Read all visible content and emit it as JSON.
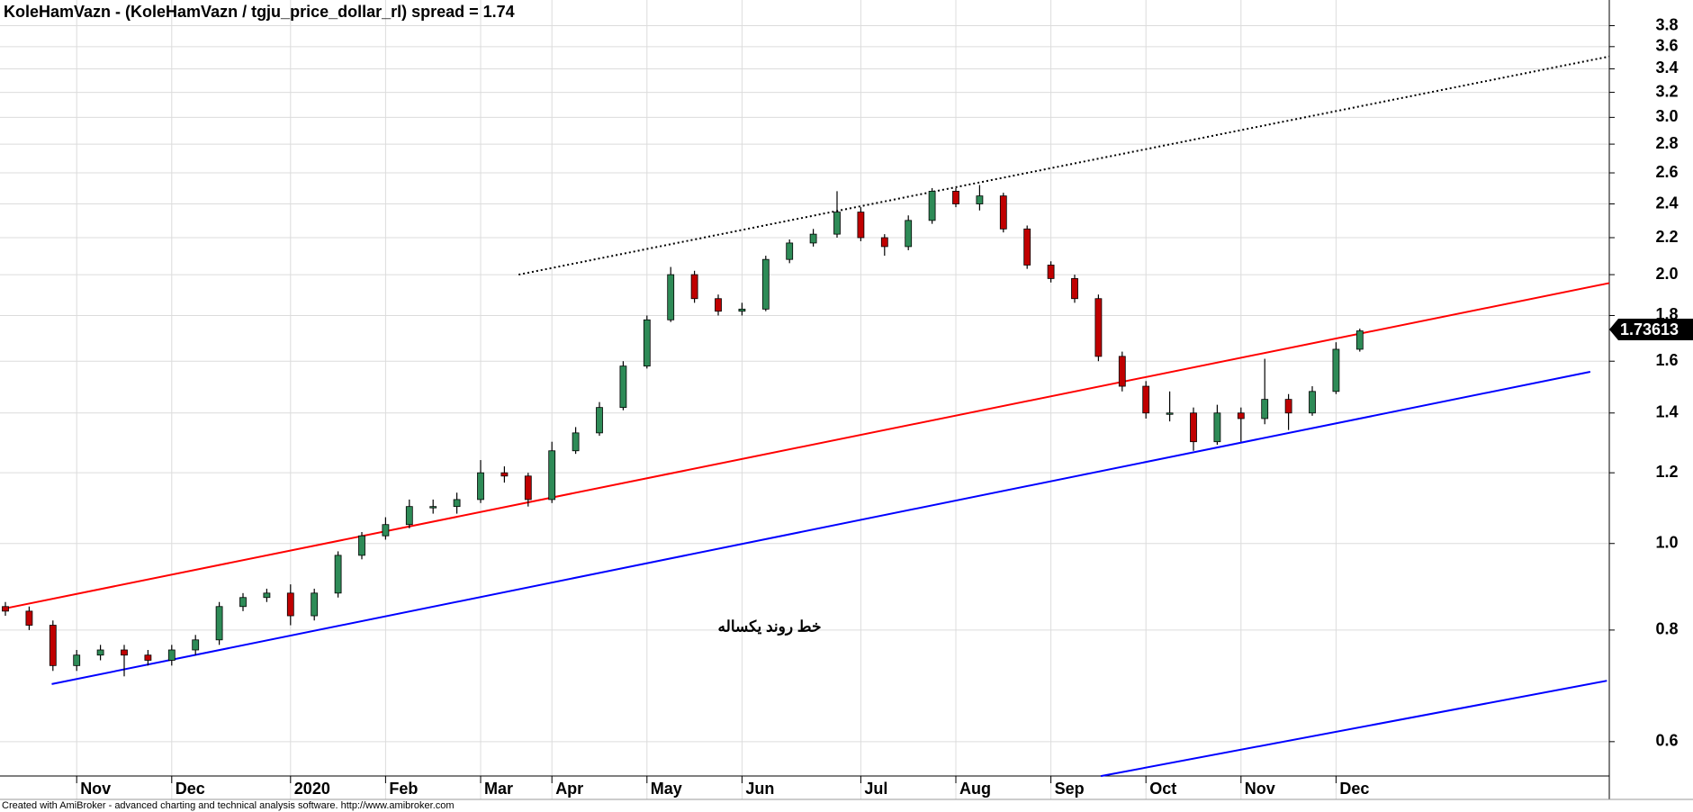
{
  "chart_data": {
    "type": "candlestick",
    "title": "KoleHamVazn - (KoleHamVazn / tgju_price_dollar_rl) spread = 1.74",
    "footer": "Created with AmiBroker - advanced charting and technical analysis software. http://www.amibroker.com",
    "annotation": "خط روند یکساله",
    "log_scale": true,
    "grid": true,
    "up_color": "#2e8b57",
    "down_color": "#c00000",
    "categories": [
      null,
      null,
      null,
      "Nov",
      null,
      null,
      null,
      "Dec",
      null,
      null,
      null,
      null,
      "2020",
      null,
      null,
      null,
      "Feb",
      null,
      null,
      null,
      "Mar",
      null,
      null,
      "Apr",
      null,
      null,
      null,
      "May",
      null,
      null,
      null,
      "Jun",
      null,
      null,
      null,
      null,
      "Jul",
      null,
      null,
      null,
      "Aug",
      null,
      null,
      null,
      "Sep",
      null,
      null,
      null,
      "Oct",
      null,
      null,
      null,
      "Nov",
      null,
      null,
      null,
      "Dec",
      null
    ],
    "open": [
      0.85,
      0.84,
      0.81,
      0.73,
      0.75,
      0.76,
      0.75,
      0.74,
      0.76,
      0.78,
      0.85,
      0.87,
      0.88,
      0.83,
      0.88,
      0.97,
      1.02,
      1.05,
      1.1,
      1.1,
      1.12,
      1.2,
      1.19,
      1.12,
      1.27,
      1.33,
      1.42,
      1.58,
      1.78,
      2.0,
      1.88,
      1.82,
      1.83,
      2.08,
      2.17,
      2.22,
      2.35,
      2.2,
      2.15,
      2.3,
      2.48,
      2.4,
      2.45,
      2.25,
      2.05,
      1.98,
      1.88,
      1.62,
      1.5,
      1.4,
      1.4,
      1.3,
      1.4,
      1.38,
      1.45,
      1.4,
      1.48,
      1.65
    ],
    "high": [
      0.86,
      0.85,
      0.82,
      0.76,
      0.77,
      0.77,
      0.76,
      0.77,
      0.79,
      0.86,
      0.88,
      0.89,
      0.9,
      0.89,
      0.98,
      1.03,
      1.07,
      1.12,
      1.12,
      1.14,
      1.24,
      1.22,
      1.2,
      1.3,
      1.35,
      1.44,
      1.6,
      1.8,
      2.04,
      2.02,
      1.9,
      1.86,
      2.1,
      2.19,
      2.25,
      2.48,
      2.38,
      2.22,
      2.33,
      2.5,
      2.5,
      2.52,
      2.47,
      2.27,
      2.07,
      2.0,
      1.9,
      1.64,
      1.52,
      1.48,
      1.42,
      1.43,
      1.42,
      1.61,
      1.47,
      1.5,
      1.68,
      1.74
    ],
    "low": [
      0.83,
      0.8,
      0.72,
      0.72,
      0.74,
      0.71,
      0.73,
      0.73,
      0.75,
      0.77,
      0.84,
      0.86,
      0.81,
      0.82,
      0.87,
      0.96,
      1.01,
      1.04,
      1.08,
      1.08,
      1.11,
      1.17,
      1.1,
      1.11,
      1.26,
      1.32,
      1.41,
      1.57,
      1.77,
      1.86,
      1.8,
      1.8,
      1.82,
      2.06,
      2.15,
      2.2,
      2.18,
      2.1,
      2.13,
      2.28,
      2.38,
      2.36,
      2.23,
      2.03,
      1.96,
      1.86,
      1.6,
      1.48,
      1.38,
      1.37,
      1.27,
      1.29,
      1.3,
      1.36,
      1.34,
      1.39,
      1.47,
      1.64
    ],
    "close": [
      0.84,
      0.81,
      0.73,
      0.75,
      0.76,
      0.75,
      0.74,
      0.76,
      0.78,
      0.85,
      0.87,
      0.88,
      0.83,
      0.88,
      0.97,
      1.02,
      1.05,
      1.1,
      1.1,
      1.12,
      1.2,
      1.19,
      1.12,
      1.27,
      1.33,
      1.42,
      1.58,
      1.78,
      2.0,
      1.88,
      1.82,
      1.83,
      2.08,
      2.17,
      2.22,
      2.35,
      2.2,
      2.15,
      2.3,
      2.48,
      2.4,
      2.45,
      2.25,
      2.05,
      1.98,
      1.88,
      1.62,
      1.5,
      1.4,
      1.4,
      1.3,
      1.4,
      1.38,
      1.45,
      1.4,
      1.48,
      1.65,
      1.73
    ],
    "last_value": 1.73613,
    "trendlines": [
      {
        "color": "#ff0000",
        "style": "solid",
        "x": [
          0,
          67.5
        ],
        "values": [
          0.846,
          1.957
        ]
      },
      {
        "color": "#0000ff",
        "style": "solid",
        "x": [
          1.95,
          66.7
        ],
        "values": [
          0.696,
          1.557
        ]
      },
      {
        "color": "#000000",
        "style": "dotted",
        "x": [
          21.6,
          67.5
        ],
        "values": [
          2.0,
          3.51
        ]
      },
      {
        "color": "#0000ff",
        "style": "solid",
        "x": [
          46.1,
          67.4
        ],
        "values": [
          0.549,
          0.702
        ]
      }
    ],
    "ylim": [
      0.517,
      4.06
    ],
    "yticks": [
      0.6,
      0.8,
      {
        "value": 1.0,
        "label": "1.0"
      },
      1.2,
      1.4,
      1.6,
      1.8,
      {
        "value": 2.0,
        "label": "2.0"
      },
      2.2,
      2.4,
      2.6,
      2.8,
      {
        "value": 3.0,
        "label": "3.0"
      },
      3.2,
      3.4,
      3.6,
      3.8
    ]
  }
}
